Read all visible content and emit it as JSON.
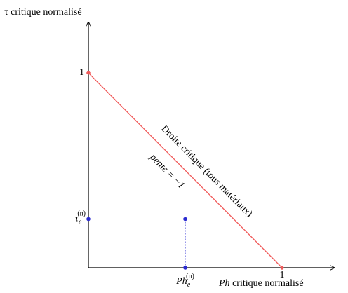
{
  "chart_data": {
    "type": "line",
    "y_axis_label": "τ critique normalisé",
    "x_axis_label": {
      "italic": "Ph",
      "rest": " critique normalisé"
    },
    "xlim": [
      0,
      1.25
    ],
    "ylim": [
      0,
      1.25
    ],
    "xticks": [
      1
    ],
    "yticks": [
      1
    ],
    "tick_color": "#f04848",
    "series": [
      {
        "name": "Droite critique (tous matériaux)",
        "color": "#f05a5a",
        "x": [
          0,
          1
        ],
        "values": [
          1,
          0
        ]
      }
    ],
    "slope_label": "pente = −1",
    "point": {
      "x": 0.5,
      "y": 0.25,
      "color": "#2a2ad0",
      "x_label": {
        "base": "Ph",
        "sub": "e",
        "sup": "(n)"
      },
      "y_label": {
        "base": "τ",
        "sub": "e",
        "sup": "(n)"
      }
    }
  }
}
